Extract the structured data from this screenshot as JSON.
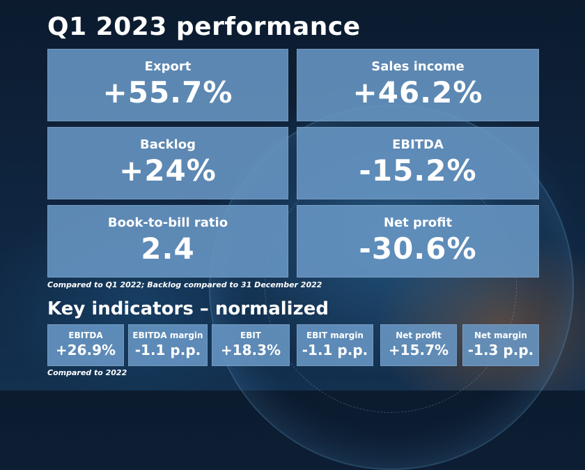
{
  "title": "Q1 2023 performance",
  "cards": [
    {
      "label": "Export",
      "value": "+55.7%"
    },
    {
      "label": "Sales income",
      "value": "+46.2%"
    },
    {
      "label": "Backlog",
      "value": "+24%"
    },
    {
      "label": "EBITDA",
      "value": "-15.2%"
    },
    {
      "label": "Book-to-bill ratio",
      "value": "2.4"
    },
    {
      "label": "Net profit",
      "value": "-30.6%"
    }
  ],
  "note1": "Compared to Q1 2022; Backlog compared to 31 December 2022",
  "subtitle": "Key indicators – normalized",
  "indicators": [
    {
      "label": "EBITDA",
      "value": "+26.9%"
    },
    {
      "label": "EBITDA margin",
      "value": "-1.1 p.p."
    },
    {
      "label": "EBIT",
      "value": "+18.3%"
    },
    {
      "label": "EBIT margin",
      "value": "-1.1 p.p."
    },
    {
      "label": "Net profit",
      "value": "+15.7%"
    },
    {
      "label": "Net margin",
      "value": "-1.3 p.p."
    }
  ],
  "note2": "Compared to 2022"
}
